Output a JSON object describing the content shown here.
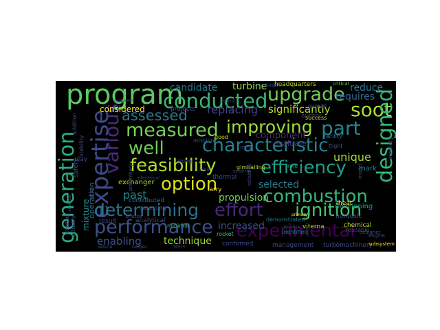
{
  "words": [
    {
      "id": "program",
      "text": "program",
      "color": "#5ec962"
    },
    {
      "id": "conducted",
      "text": "conducted",
      "color": "#35b779"
    },
    {
      "id": "upgrade",
      "text": "upgrade",
      "color": "#6ece58"
    },
    {
      "id": "expertise",
      "text": "expertise",
      "color": "#3e4a89"
    },
    {
      "id": "generation",
      "text": "generation",
      "color": "#29af7f"
    },
    {
      "id": "various",
      "text": "various",
      "color": "#472d7b"
    },
    {
      "id": "improving",
      "text": "improving",
      "color": "#9fda3a"
    },
    {
      "id": "measured",
      "text": "measured",
      "color": "#73d056"
    },
    {
      "id": "assessed",
      "text": "assessed",
      "color": "#2a788e"
    },
    {
      "id": "part",
      "text": "part",
      "color": "#25848e"
    },
    {
      "id": "soot",
      "text": "soot",
      "color": "#addc30"
    },
    {
      "id": "designed",
      "text": "designed",
      "color": "#35b779"
    },
    {
      "id": "well",
      "text": "well",
      "color": "#6ece58"
    },
    {
      "id": "characteristic",
      "text": "characteristic",
      "color": "#26828e"
    },
    {
      "id": "feasibility",
      "text": "feasibility",
      "color": "#b5de2b"
    },
    {
      "id": "efficiency",
      "text": "efficiency",
      "color": "#1f9e89"
    },
    {
      "id": "option",
      "text": "option",
      "color": "#d8e219"
    },
    {
      "id": "combustion",
      "text": "combustion",
      "color": "#35b779"
    },
    {
      "id": "determining",
      "text": "determining",
      "color": "#2c728e"
    },
    {
      "id": "effort",
      "text": "effort",
      "color": "#482878"
    },
    {
      "id": "ignition",
      "text": "ignition",
      "color": "#4ac16d"
    },
    {
      "id": "performance",
      "text": "performance",
      "color": "#3b528b"
    },
    {
      "id": "experimental",
      "text": "experimental",
      "color": "#440154"
    },
    {
      "id": "considered",
      "text": "considered",
      "color": "#fde725"
    },
    {
      "id": "significantly",
      "text": "significantly",
      "color": "#b8de29"
    },
    {
      "id": "replacing",
      "text": "replacing",
      "color": "#414487"
    },
    {
      "id": "requires",
      "text": "requires",
      "color": "#31688e"
    },
    {
      "id": "reduce",
      "text": "reduce",
      "color": "#2a788e"
    },
    {
      "id": "candidate",
      "text": "candidate",
      "color": "#2a788e"
    },
    {
      "id": "turbine",
      "text": "turbine",
      "color": "#90d743"
    },
    {
      "id": "headquarters",
      "text": "headquarters",
      "color": "#bddf26"
    },
    {
      "id": "critical",
      "text": "critical",
      "color": "#6ece58"
    },
    {
      "id": "unique",
      "text": "unique",
      "color": "#a5db36"
    },
    {
      "id": "selected",
      "text": "selected",
      "color": "#2a788e"
    },
    {
      "id": "exchanger",
      "text": "exchanger",
      "color": "#addc30"
    },
    {
      "id": "past",
      "text": "past",
      "color": "#25858e"
    },
    {
      "id": "propulsion",
      "text": "propulsion",
      "color": "#6ece58"
    },
    {
      "id": "increased",
      "text": "increased",
      "color": "#3e4a89"
    },
    {
      "id": "technique",
      "text": "technique",
      "color": "#a0da39"
    },
    {
      "id": "enabling",
      "text": "enabling",
      "color": "#3b528b"
    },
    {
      "id": "operation",
      "text": "operation",
      "color": "#2f6c8e"
    },
    {
      "id": "mixture",
      "text": "mixture",
      "color": "#228c8d"
    },
    {
      "id": "evaluate",
      "text": "evaluate",
      "color": "#443983"
    },
    {
      "id": "developing",
      "text": "developing",
      "color": "#1fa187"
    },
    {
      "id": "management",
      "text": "management",
      "color": "#3e4a89"
    },
    {
      "id": "turbomachinery",
      "text": "turbomachinery",
      "color": "#3e4a89"
    },
    {
      "id": "subsystem",
      "text": "subsystem",
      "color": "#fde725"
    },
    {
      "id": "chemical",
      "text": "chemical",
      "color": "#b5de2b"
    },
    {
      "id": "heat",
      "text": "heat",
      "color": "#fde725"
    },
    {
      "id": "viterna",
      "text": "viterna",
      "color": "#addc30"
    },
    {
      "id": "nontoxic",
      "text": "nontoxic",
      "color": "#3b528b"
    },
    {
      "id": "confirmed",
      "text": "confirmed",
      "color": "#3e4a89"
    },
    {
      "id": "projects",
      "text": "projects",
      "color": "#3b528b"
    },
    {
      "id": "mission",
      "text": "mission",
      "color": "#3b528b"
    },
    {
      "id": "success",
      "text": "success",
      "color": "#bddf26"
    },
    {
      "id": "facility",
      "text": "facility",
      "color": "#2c728e"
    },
    {
      "id": "flight",
      "text": "flight",
      "color": "#3b528b"
    },
    {
      "id": "component",
      "text": "component",
      "color": "#472d7b"
    },
    {
      "id": "overall",
      "text": "overall",
      "color": "#3e4a89"
    },
    {
      "id": "author",
      "text": "author",
      "color": "#443983"
    },
    {
      "id": "good",
      "text": "good",
      "color": "#bddf26"
    },
    {
      "id": "mark",
      "text": "mark",
      "color": "#26828e"
    },
    {
      "id": "role",
      "text": "role",
      "color": "#1fa187"
    },
    {
      "id": "thermal",
      "text": "thermal",
      "color": "#3b528b"
    },
    {
      "id": "larry",
      "text": "larry",
      "color": "#fde725"
    },
    {
      "id": "result",
      "text": "result",
      "color": "#3e4a89"
    },
    {
      "id": "analytical",
      "text": "analytical",
      "color": "#3e4a89"
    },
    {
      "id": "minimal",
      "text": "minimal",
      "color": "#35b779"
    },
    {
      "id": "contributed",
      "text": "contributed",
      "color": "#2c728e"
    },
    {
      "id": "rocket",
      "text": "rocket",
      "color": "#4ac16d"
    },
    {
      "id": "vehicle",
      "text": "vehicle",
      "color": "#3e4a89"
    },
    {
      "id": "combustor",
      "text": "combustor",
      "color": "#3e4a89"
    },
    {
      "id": "contact",
      "text": "contact",
      "color": "#3e4a89"
    },
    {
      "id": "industry",
      "text": "industry",
      "color": "#3e4a89"
    },
    {
      "id": "along",
      "text": "along",
      "color": "#3e4a89"
    },
    {
      "id": "reusable",
      "text": "reusable",
      "color": "#3e4a89"
    },
    {
      "id": "engine",
      "text": "engine",
      "color": "#3e4a89"
    },
    {
      "id": "play",
      "text": "play",
      "color": "#3e4a89"
    },
    {
      "id": "assessing",
      "text": "assessing",
      "color": "#3b528b"
    },
    {
      "id": "electrical",
      "text": "electrical",
      "color": "#3e4a89"
    },
    {
      "id": "shuttle",
      "text": "shuttle",
      "color": "#3e4a89"
    },
    {
      "id": "power",
      "text": "power",
      "color": "#3e4a89"
    },
    {
      "id": "test",
      "text": "test",
      "color": "#3e4a89"
    },
    {
      "id": "space",
      "text": "space",
      "color": "#3e4a89"
    },
    {
      "id": "control",
      "text": "control",
      "color": "#3e4a89"
    },
    {
      "id": "demonstrated",
      "text": "demonstrated",
      "color": "#2a788e"
    },
    {
      "id": "identified",
      "text": "identified",
      "color": "#2c728e"
    },
    {
      "id": "kinetics",
      "text": "kinetics",
      "color": "#3e4a89"
    },
    {
      "id": "designer",
      "text": "designer",
      "color": "#3e4a89"
    },
    {
      "id": "primary",
      "text": "primary",
      "color": "#fde725"
    },
    {
      "id": "gimballing",
      "text": "gimballing",
      "color": "#b5de2b"
    },
    {
      "id": "klein",
      "text": "klein",
      "color": "#3e4a89"
    },
    {
      "id": "oxygen",
      "text": "oxygen",
      "color": "#3e4a89"
    },
    {
      "id": "model",
      "text": "model",
      "color": "#3e4a89"
    },
    {
      "id": "safety",
      "text": "safety",
      "color": "#3e4a89"
    },
    {
      "id": "viability",
      "text": "viability",
      "color": "#3e4a89"
    },
    {
      "id": "preliminary",
      "text": "preliminary",
      "color": "#3e4a89"
    },
    {
      "id": "addition",
      "text": "addition",
      "color": "#3e4a89"
    },
    {
      "id": "reliability",
      "text": "reliability",
      "color": "#3e4a89"
    },
    {
      "id": "auxiliary",
      "text": "auxiliary",
      "color": "#3e4a89"
    },
    {
      "id": "analysis",
      "text": "analysis",
      "color": "#3e4a89"
    },
    {
      "id": "several",
      "text": "several",
      "color": "#3e4a89"
    },
    {
      "id": "used",
      "text": "used",
      "color": "#3e4a89"
    },
    {
      "id": "gas",
      "text": "gas",
      "color": "#3e4a89"
    }
  ]
}
